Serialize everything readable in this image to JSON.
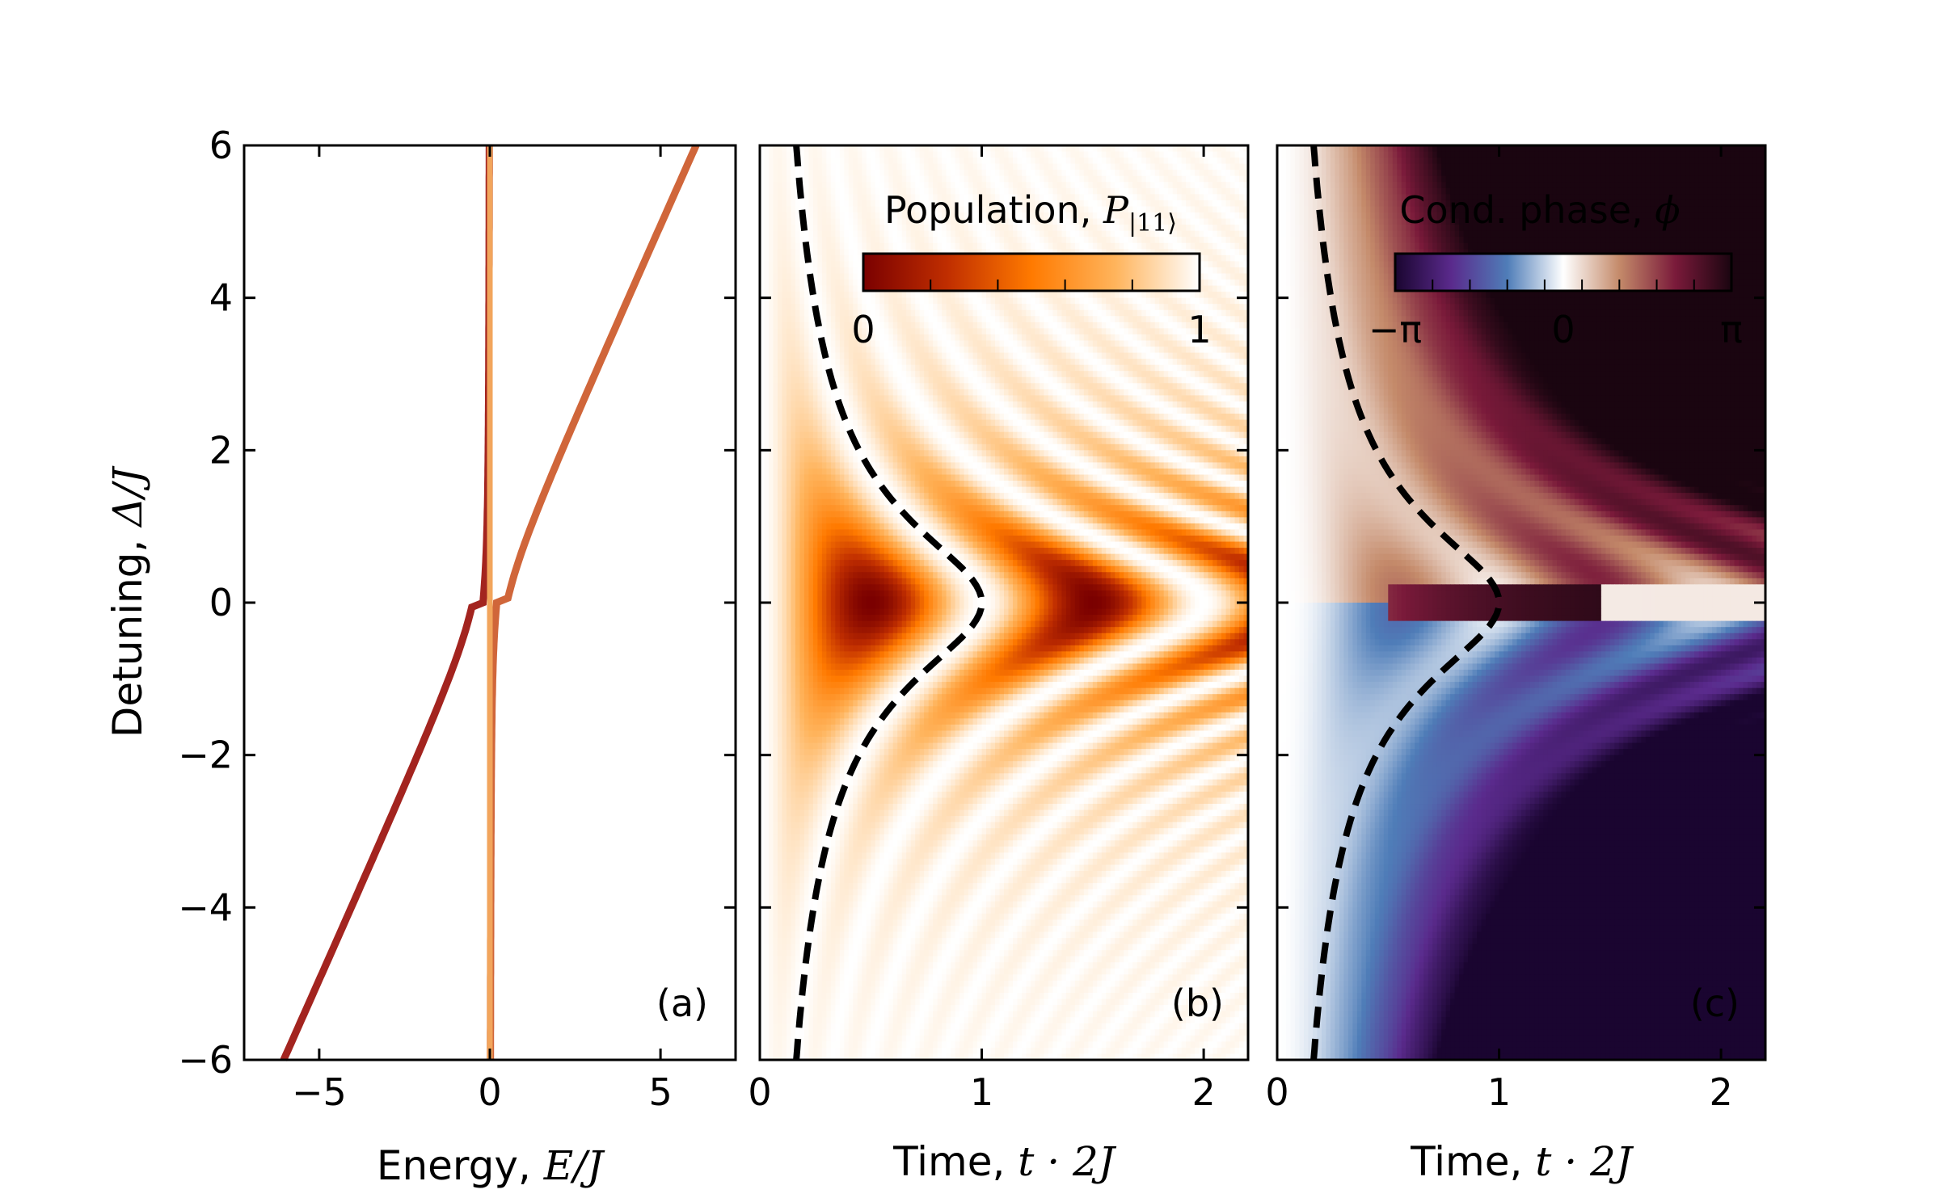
{
  "chart_data": [
    {
      "panel": "(a)",
      "type": "line",
      "xlabel_prefix": "Energy, ",
      "xlabel_math": "E/J",
      "ylabel_prefix": "Detuning, ",
      "ylabel_math": "Δ/J",
      "xlim": [
        -7.2,
        7.2
      ],
      "ylim": [
        -6,
        6
      ],
      "xticks": [
        -5,
        0,
        5
      ],
      "xtick_labels": [
        "−5",
        "0",
        "5"
      ],
      "yticks": [
        -6,
        -4,
        -2,
        0,
        2,
        4,
        6
      ],
      "ytick_labels": [
        "−6",
        "−4",
        "−2",
        "0",
        "2",
        "4",
        "6"
      ],
      "series": [
        {
          "color": "#a3241f",
          "function": "lower_eigenvalue",
          "y": [
            -6,
            -5,
            -4,
            -3,
            -2,
            -1,
            -0.5,
            0,
            0.5,
            1,
            2,
            3,
            4,
            5,
            6
          ],
          "x": [
            -6.04,
            -5.05,
            -4.06,
            -3.08,
            -2.11,
            -1.21,
            -0.83,
            -0.5,
            -0.33,
            -0.21,
            -0.1,
            -0.05,
            -0.04,
            -0.03,
            -0.02
          ]
        },
        {
          "color": "#d0663a",
          "function": "middle_eigenvalue",
          "y": [
            -6,
            -4,
            -2,
            -1,
            -0.5,
            0,
            0.5,
            1,
            2,
            3,
            4,
            5,
            6
          ],
          "x": [
            0.02,
            0.04,
            0.1,
            0.21,
            0.33,
            0.5,
            0.83,
            1.21,
            2.11,
            3.08,
            4.06,
            5.05,
            6.04
          ]
        },
        {
          "color": "#f2a55c",
          "function": "uncoupled_level",
          "y": [
            -6,
            6
          ],
          "x": [
            0,
            0
          ]
        }
      ]
    },
    {
      "panel": "(b)",
      "type": "heatmap",
      "xlabel_prefix": "Time, ",
      "xlabel_math": "t · 2J",
      "xlim": [
        0,
        2.2
      ],
      "ylim": [
        -6,
        6
      ],
      "xticks": [
        0,
        1,
        2
      ],
      "xtick_labels": [
        "0",
        "1",
        "2"
      ],
      "colorbar_title_prefix": "Population, ",
      "colorbar_title_math": "P",
      "colorbar_title_sub": "|11⟩",
      "colorbar_ticks": [
        "0",
        "1"
      ],
      "colormap": [
        "#7a0000",
        "#c02e00",
        "#ff7a00",
        "#ffb45c",
        "#ffffff"
      ],
      "dashed_curve": {
        "description": "t_peak = 1/sqrt(1 + Δ^2)",
        "y": [
          -6,
          -4,
          -2,
          -1,
          0,
          1,
          2,
          4,
          6
        ],
        "x": [
          0.164,
          0.243,
          0.447,
          0.707,
          1.0,
          0.707,
          0.447,
          0.243,
          0.164
        ]
      }
    },
    {
      "panel": "(c)",
      "type": "heatmap",
      "xlabel_prefix": "Time, ",
      "xlabel_math": "t · 2J",
      "xlim": [
        0,
        2.2
      ],
      "ylim": [
        -6,
        6
      ],
      "xticks": [
        0,
        1,
        2
      ],
      "xtick_labels": [
        "0",
        "1",
        "2"
      ],
      "colorbar_title_prefix": "Cond. phase, ",
      "colorbar_title_math": "ϕ",
      "colorbar_ticks": [
        "−π",
        "0",
        "π"
      ],
      "colormap": [
        "#1a0530",
        "#5a2a8c",
        "#4f7db8",
        "#ffffff",
        "#c48a6a",
        "#7a1a3a",
        "#1a0510"
      ],
      "dashed_curve": {
        "description": "t_peak = 1/sqrt(1 + Δ^2)",
        "y": [
          -6,
          -4,
          -2,
          -1,
          0,
          1,
          2,
          4,
          6
        ],
        "x": [
          0.164,
          0.243,
          0.447,
          0.707,
          1.0,
          0.707,
          0.447,
          0.243,
          0.164
        ]
      }
    }
  ]
}
